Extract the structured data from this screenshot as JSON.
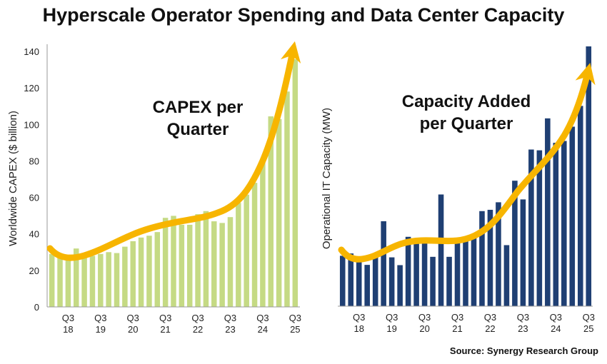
{
  "title": "Hyperscale Operator Spending and Data Center Capacity",
  "source": "Source: Synergy Research Group",
  "colors": {
    "capex_bar": "#c5da84",
    "capacity_bar": "#1f3f73",
    "trend_arrow": "#f7b500"
  },
  "chart_data": [
    {
      "type": "bar",
      "title": "",
      "annotation": [
        "CAPEX per",
        "Quarter"
      ],
      "ylabel": "Worldwide CAPEX ($ billion)",
      "xlabel": "",
      "ylim": [
        0,
        140
      ],
      "yticks": [
        "0",
        "20",
        "40",
        "60",
        "80",
        "100",
        "120",
        "140"
      ],
      "xtick_labels": [
        [
          "Q3",
          "18"
        ],
        [
          "Q3",
          "19"
        ],
        [
          "Q3",
          "20"
        ],
        [
          "Q3",
          "21"
        ],
        [
          "Q3",
          "22"
        ],
        [
          "Q3",
          "23"
        ],
        [
          "Q3",
          "24"
        ],
        [
          "Q3",
          "25"
        ]
      ],
      "xtick_positions": [
        2,
        6,
        10,
        14,
        18,
        22,
        26,
        30
      ],
      "values": [
        29,
        28,
        27,
        32,
        27,
        28,
        29,
        30,
        29.5,
        33,
        36,
        38,
        39,
        41,
        48.8,
        49.9,
        45,
        45,
        50.8,
        52.5,
        46.9,
        46,
        49.2,
        57,
        61.5,
        68,
        80,
        104.4,
        102.9,
        118,
        135.7
      ],
      "trend": "upward arrow"
    },
    {
      "type": "bar",
      "title": "",
      "annotation": [
        "Capacity Added",
        "per Quarter"
      ],
      "ylabel": "Operational IT Capacity (MW)",
      "xlabel": "",
      "ylim": [
        0,
        100
      ],
      "units_note": "relative index, max bar = 100 (no y ticks shown)",
      "xtick_labels": [
        [
          "Q3",
          "18"
        ],
        [
          "Q3",
          "19"
        ],
        [
          "Q3",
          "20"
        ],
        [
          "Q3",
          "21"
        ],
        [
          "Q3",
          "22"
        ],
        [
          "Q3",
          "23"
        ],
        [
          "Q3",
          "24"
        ],
        [
          "Q3",
          "25"
        ]
      ],
      "xtick_positions": [
        2,
        6,
        10,
        14,
        18,
        22,
        26,
        30
      ],
      "values": [
        19.4,
        20.3,
        17.1,
        15.9,
        19,
        32.7,
        18.8,
        15.8,
        26.7,
        24.5,
        24.5,
        19,
        43,
        19,
        24.9,
        26.3,
        27.4,
        36.6,
        37.1,
        40,
        23.5,
        48.3,
        41.1,
        60.3,
        60,
        72.3,
        62.9,
        63.6,
        69.1,
        77.1,
        100
      ],
      "trend": "upward arrow"
    }
  ]
}
